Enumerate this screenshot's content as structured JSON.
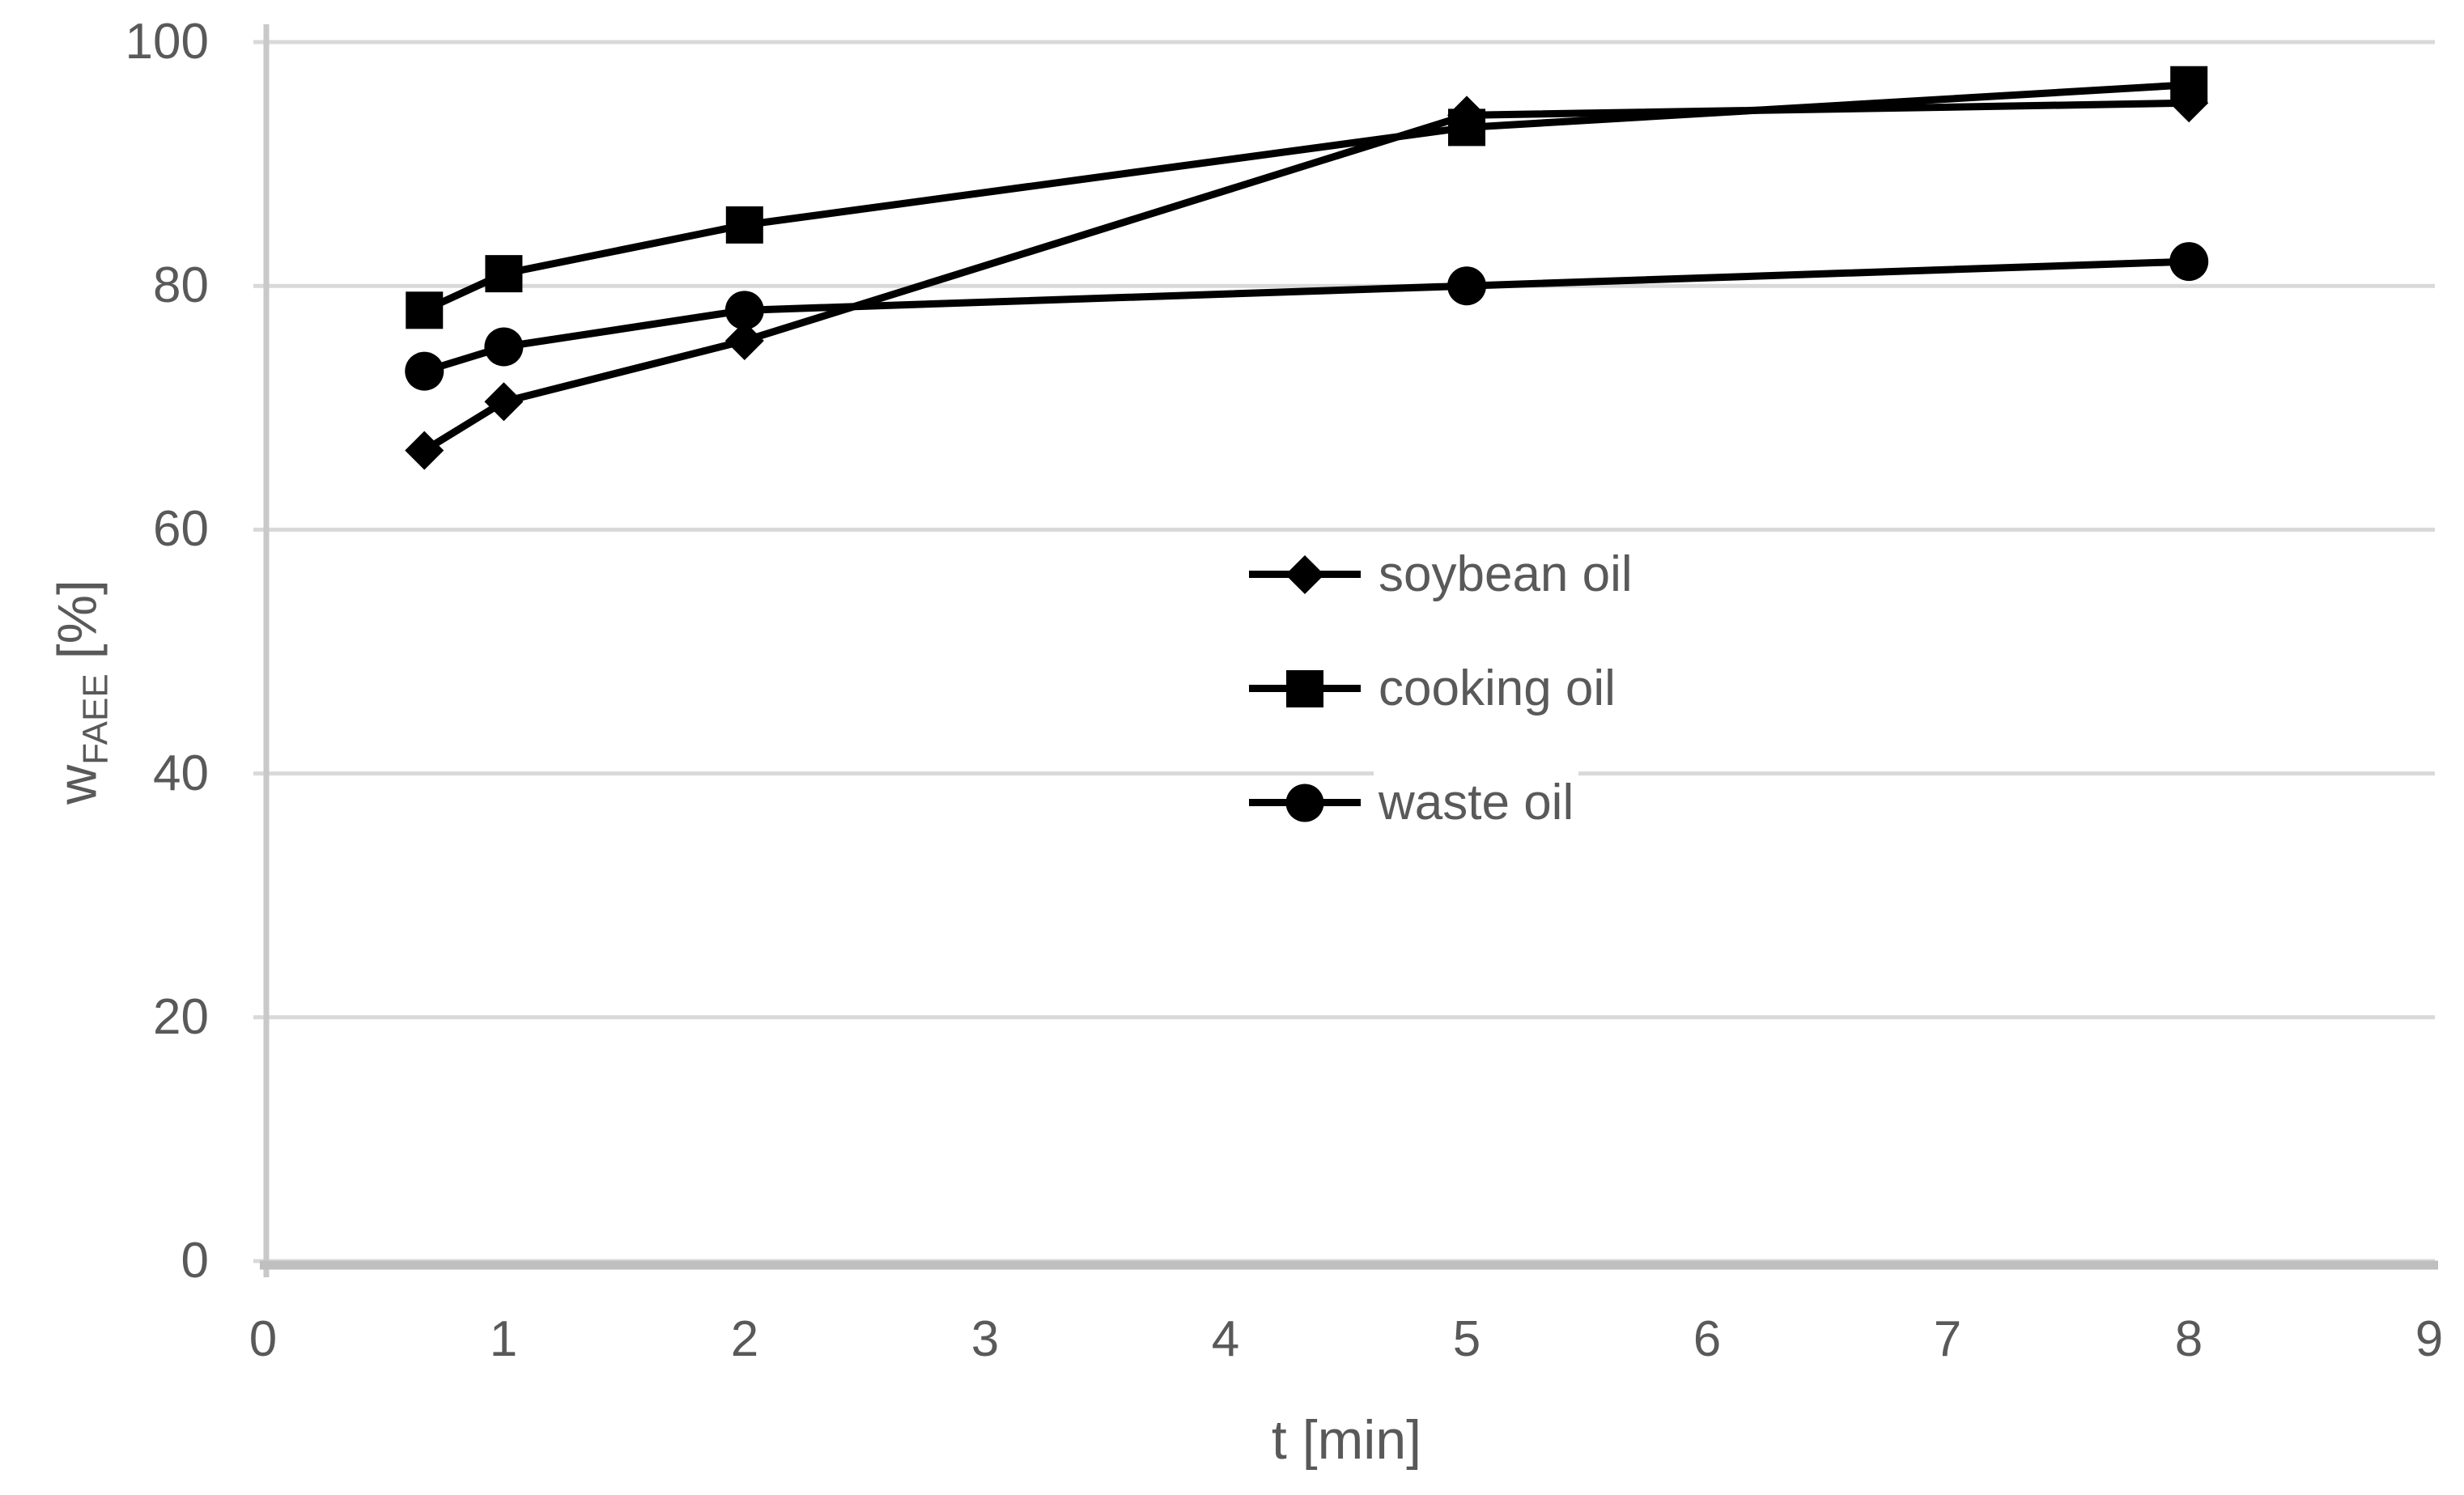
{
  "chart_data": {
    "type": "line",
    "title": "",
    "xlabel": "t [min]",
    "ylabel": "w_FAEE [%]",
    "ylabel_parts": {
      "symbol": "w",
      "subscript": "FAEE",
      "unit": "[%]"
    },
    "x": [
      0.67,
      1,
      2,
      5,
      8
    ],
    "series": [
      {
        "name": "soybean oil",
        "marker": "diamond",
        "values": [
          66.5,
          70.5,
          75.5,
          94,
          95
        ]
      },
      {
        "name": "cooking oil",
        "marker": "square",
        "values": [
          78,
          81,
          85,
          93,
          96.5
        ]
      },
      {
        "name": "waste oil",
        "marker": "circle",
        "values": [
          73,
          75,
          78,
          80,
          82
        ]
      }
    ],
    "xlim": [
      0,
      9
    ],
    "ylim": [
      0,
      100
    ],
    "xticks": [
      0,
      1,
      2,
      3,
      4,
      5,
      6,
      7,
      8,
      9
    ],
    "yticks": [
      0,
      20,
      40,
      60,
      80,
      100
    ],
    "grid": "horizontal",
    "legend_position": "center-right",
    "colors": {
      "series": "#000000",
      "gridline": "#d9d9d9",
      "axis_line": "#bfbfbf",
      "label_text": "#595959"
    }
  }
}
